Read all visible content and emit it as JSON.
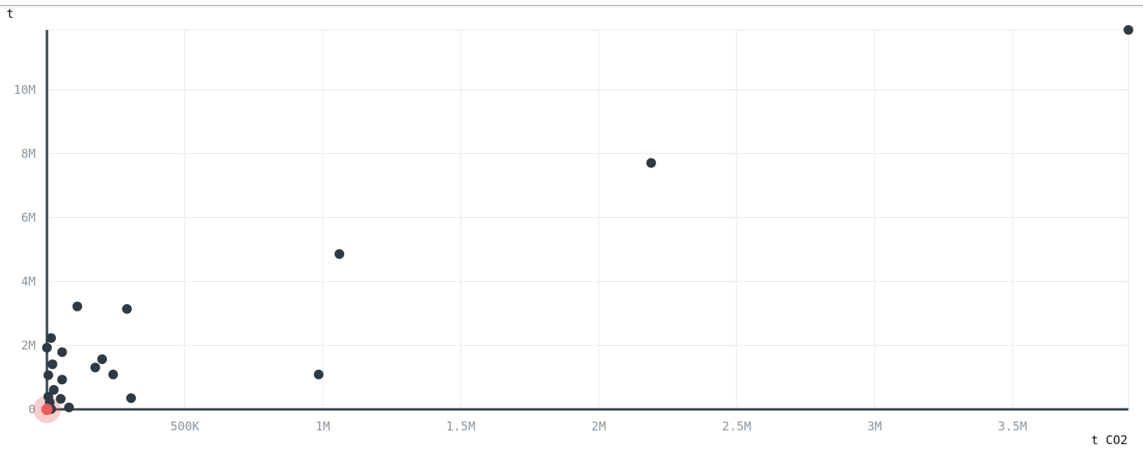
{
  "chart_data": {
    "type": "scatter",
    "xlabel": "t CO2",
    "ylabel": "t",
    "xlim": [
      0,
      3920000
    ],
    "ylim": [
      0,
      11870000
    ],
    "x_ticks": [
      {
        "v": 500000,
        "label": "500K"
      },
      {
        "v": 1000000,
        "label": "1M"
      },
      {
        "v": 1500000,
        "label": "1.5M"
      },
      {
        "v": 2000000,
        "label": "2M"
      },
      {
        "v": 2500000,
        "label": "2.5M"
      },
      {
        "v": 3000000,
        "label": "3M"
      },
      {
        "v": 3500000,
        "label": "3.5M"
      }
    ],
    "y_ticks": [
      {
        "v": 0,
        "label": "0"
      },
      {
        "v": 2000000,
        "label": "2M"
      },
      {
        "v": 4000000,
        "label": "4M"
      },
      {
        "v": 6000000,
        "label": "6M"
      },
      {
        "v": 8000000,
        "label": "8M"
      },
      {
        "v": 10000000,
        "label": "10M"
      }
    ],
    "grid": true,
    "colors": {
      "point": "#2e3b44",
      "highlight": "#e85c5c",
      "axis": "#37444c",
      "grid": "#e6e8ea"
    },
    "points": [
      {
        "x": 3920000,
        "y": 11870000
      },
      {
        "x": 2190000,
        "y": 7710000
      },
      {
        "x": 1060000,
        "y": 4860000
      },
      {
        "x": 985000,
        "y": 1090000
      },
      {
        "x": 110000,
        "y": 3220000
      },
      {
        "x": 290000,
        "y": 3140000
      },
      {
        "x": 15000,
        "y": 2230000
      },
      {
        "x": 0,
        "y": 1930000
      },
      {
        "x": 55000,
        "y": 1790000
      },
      {
        "x": 200000,
        "y": 1570000
      },
      {
        "x": 20000,
        "y": 1410000
      },
      {
        "x": 175000,
        "y": 1310000
      },
      {
        "x": 240000,
        "y": 1090000
      },
      {
        "x": 5000,
        "y": 1070000
      },
      {
        "x": 55000,
        "y": 930000
      },
      {
        "x": 25000,
        "y": 610000
      },
      {
        "x": 5000,
        "y": 400000
      },
      {
        "x": 50000,
        "y": 330000
      },
      {
        "x": 305000,
        "y": 350000
      },
      {
        "x": 10000,
        "y": 220000
      },
      {
        "x": 80000,
        "y": 60000
      },
      {
        "x": 5000,
        "y": 30000
      },
      {
        "x": 15000,
        "y": 10000
      }
    ],
    "highlight": {
      "x": 0,
      "y": 0
    }
  }
}
